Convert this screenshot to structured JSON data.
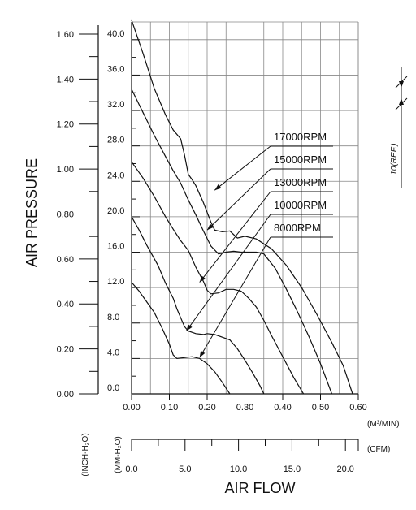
{
  "chart_data": {
    "type": "line",
    "x_axis_m3": {
      "ticks": [
        "0.00",
        "0.10",
        "0.20",
        "0.30",
        "0.40",
        "0.50",
        "0.60"
      ],
      "range": [
        0,
        0.6
      ],
      "unit": "(M³/MIN)"
    },
    "x_axis_cfm": {
      "ticks": [
        "0.0",
        "5.0",
        "10.0",
        "15.0",
        "20.0"
      ],
      "range": [
        0,
        21.2
      ],
      "unit": "(CFM)"
    },
    "y_axis_mm": {
      "ticks": [
        "0.0",
        "4.0",
        "8.0",
        "12.0",
        "16.0",
        "20.0",
        "24.0",
        "28.0",
        "32.0",
        "36.0",
        "40.0"
      ],
      "range": [
        0,
        42
      ],
      "unit": "(MM-H₂O)"
    },
    "y_axis_inch": {
      "ticks": [
        "0.00",
        "0.20",
        "0.40",
        "0.60",
        "0.80",
        "1.00",
        "1.20",
        "1.40",
        "1.60"
      ],
      "range": [
        0,
        1.654
      ],
      "unit": "(INCH-H₂O)"
    },
    "ylabel": "AIR PRESSURE",
    "xlabel": "AIR FLOW",
    "grid": true,
    "dimension_note": "10(REF.)",
    "series": [
      {
        "name": "17000RPM",
        "points": [
          [
            0,
            42.2
          ],
          [
            0.03,
            38.5
          ],
          [
            0.06,
            34.5
          ],
          [
            0.09,
            31.5
          ],
          [
            0.11,
            29.8
          ],
          [
            0.13,
            28.8
          ],
          [
            0.14,
            27
          ],
          [
            0.15,
            24.8
          ],
          [
            0.16,
            24.2
          ],
          [
            0.17,
            23.5
          ],
          [
            0.19,
            21.6
          ],
          [
            0.21,
            19.4
          ],
          [
            0.22,
            18.5
          ],
          [
            0.24,
            18.3
          ],
          [
            0.26,
            18.4
          ],
          [
            0.28,
            17.6
          ],
          [
            0.3,
            17.8
          ],
          [
            0.33,
            17.5
          ],
          [
            0.37,
            16.4
          ],
          [
            0.41,
            14.5
          ],
          [
            0.45,
            12
          ],
          [
            0.49,
            9
          ],
          [
            0.53,
            5.8
          ],
          [
            0.56,
            3.2
          ],
          [
            0.585,
            0
          ]
        ]
      },
      {
        "name": "15000RPM",
        "points": [
          [
            0,
            34.4
          ],
          [
            0.03,
            31.8
          ],
          [
            0.06,
            29.2
          ],
          [
            0.09,
            26.8
          ],
          [
            0.11,
            25.2
          ],
          [
            0.13,
            23.8
          ],
          [
            0.15,
            21.9
          ],
          [
            0.17,
            20.2
          ],
          [
            0.19,
            18.4
          ],
          [
            0.21,
            16.7
          ],
          [
            0.23,
            15.8
          ],
          [
            0.25,
            16
          ],
          [
            0.27,
            16.1
          ],
          [
            0.29,
            16
          ],
          [
            0.31,
            16
          ],
          [
            0.33,
            16
          ],
          [
            0.35,
            15.8
          ],
          [
            0.38,
            14.2
          ],
          [
            0.41,
            11.8
          ],
          [
            0.44,
            9.2
          ],
          [
            0.47,
            6.4
          ],
          [
            0.5,
            3.4
          ],
          [
            0.53,
            0
          ]
        ]
      },
      {
        "name": "13000RPM",
        "points": [
          [
            0,
            26.2
          ],
          [
            0.03,
            24.4
          ],
          [
            0.06,
            22.3
          ],
          [
            0.09,
            20
          ],
          [
            0.11,
            18.6
          ],
          [
            0.13,
            17.3
          ],
          [
            0.15,
            16.2
          ],
          [
            0.17,
            14.3
          ],
          [
            0.19,
            12.7
          ],
          [
            0.2,
            11.7
          ],
          [
            0.21,
            11.3
          ],
          [
            0.23,
            11.4
          ],
          [
            0.25,
            11.8
          ],
          [
            0.27,
            11.8
          ],
          [
            0.29,
            11.6
          ],
          [
            0.31,
            10.8
          ],
          [
            0.33,
            9.8
          ],
          [
            0.35,
            8.3
          ],
          [
            0.37,
            6.6
          ],
          [
            0.4,
            4.2
          ],
          [
            0.43,
            1.8
          ],
          [
            0.455,
            0
          ]
        ]
      },
      {
        "name": "10000RPM",
        "points": [
          [
            0,
            20
          ],
          [
            0.02,
            18.5
          ],
          [
            0.04,
            16.8
          ],
          [
            0.07,
            14.5
          ],
          [
            0.09,
            12.5
          ],
          [
            0.11,
            10.8
          ],
          [
            0.12,
            9.6
          ],
          [
            0.13,
            8.6
          ],
          [
            0.14,
            7.6
          ],
          [
            0.15,
            7.1
          ],
          [
            0.17,
            6.8
          ],
          [
            0.19,
            6.7
          ],
          [
            0.2,
            6.8
          ],
          [
            0.22,
            6.7
          ],
          [
            0.24,
            6.4
          ],
          [
            0.26,
            6.1
          ],
          [
            0.28,
            5.1
          ],
          [
            0.3,
            3.8
          ],
          [
            0.32,
            2.4
          ],
          [
            0.34,
            0.9
          ],
          [
            0.35,
            0
          ]
        ]
      },
      {
        "name": "8000RPM",
        "points": [
          [
            0,
            12.6
          ],
          [
            0.02,
            11.6
          ],
          [
            0.04,
            10.4
          ],
          [
            0.06,
            9.2
          ],
          [
            0.08,
            7.5
          ],
          [
            0.1,
            5.6
          ],
          [
            0.11,
            4.4
          ],
          [
            0.12,
            4
          ],
          [
            0.14,
            4.1
          ],
          [
            0.16,
            4.2
          ],
          [
            0.18,
            4
          ],
          [
            0.2,
            3.4
          ],
          [
            0.22,
            2.5
          ],
          [
            0.24,
            1.3
          ],
          [
            0.26,
            0
          ]
        ]
      }
    ],
    "labels": [
      {
        "text": "17000RPM",
        "arrow_to": [
          0.22,
          23.0
        ]
      },
      {
        "text": "15000RPM",
        "arrow_to": [
          0.2,
          18.5
        ]
      },
      {
        "text": "13000RPM",
        "arrow_to": [
          0.18,
          12.6
        ]
      },
      {
        "text": "10000RPM",
        "arrow_to": [
          0.145,
          7.1
        ]
      },
      {
        "text": "8000RPM",
        "arrow_to": [
          0.18,
          4.1
        ]
      }
    ]
  }
}
